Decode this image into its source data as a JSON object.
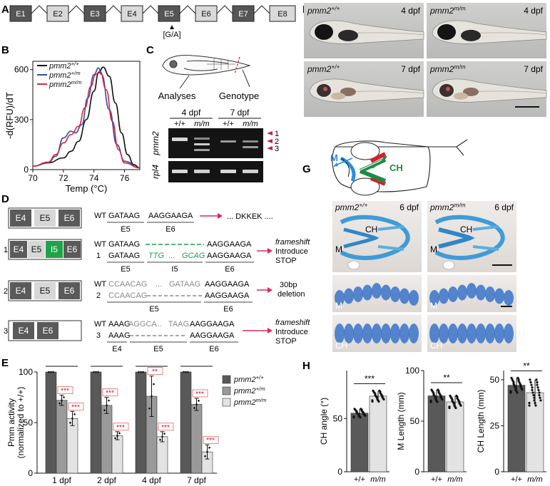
{
  "panels": {
    "A": {
      "letter": "A",
      "exons": [
        "E1",
        "E2",
        "E3",
        "E4",
        "E5",
        "E6",
        "E7",
        "E8"
      ],
      "mutation": "[G/A]"
    },
    "B": {
      "letter": "B"
    },
    "C": {
      "letter": "C",
      "analyses": "Analyses",
      "genotype": "Genotype",
      "groups": [
        "4 dpf",
        "7 dpf"
      ],
      "lanes": [
        "+/+",
        "m/m",
        "+/+",
        "m/m"
      ],
      "gene1": "pmm2",
      "gene2": "rpl4",
      "bands": [
        "1",
        "2",
        "3"
      ]
    },
    "D": {
      "letter": "D",
      "diagram_rows": [
        {
          "boxes": [
            "E4",
            "E5",
            "E6"
          ]
        },
        {
          "num": "1",
          "boxes": [
            "E4",
            "E5",
            "I5",
            "E6"
          ]
        },
        {
          "num": "2",
          "boxes": [
            "E4",
            "E5",
            "E6"
          ]
        },
        {
          "num": "3",
          "boxes": [
            "E4",
            "E6"
          ]
        }
      ],
      "wt_row": {
        "label": "WT",
        "s1": "GATAAG",
        "s2": "AAGGAAGA",
        "result": "... DKKEK ....",
        "e1": "E5",
        "e2": "E6"
      },
      "row1": {
        "wt": "WT",
        "wt_s1": "GATAAG",
        "wt_s2": "AAGGAAGA",
        "mut": "1",
        "m_s1": "GATAAG",
        "m_s2": "TTG",
        "m_dots": "...",
        "m_s3": "GCAG",
        "m_s4": "AAGGAAGA",
        "e1": "E5",
        "e2": "I5",
        "e3": "E6",
        "r1": "frameshift",
        "r2": "Introduce",
        "r3": "STOP"
      },
      "row2": {
        "wt": "WT",
        "wt_s1": "CCAACAG",
        "wt_dots": "...",
        "wt_s2": "GATAAG",
        "wt_s3": "AAGGAAGA",
        "mut": "2",
        "m_s1": "CCAACAG",
        "m_s2": "AAGGAAGA",
        "e1": "E5",
        "e2": "E6",
        "r1": "30bp",
        "r2": "deletion"
      },
      "row3": {
        "wt": "WT",
        "wt_s1": "AAAG",
        "wt_s2": "AGGCA",
        "wt_dots": "...",
        "wt_s3": "TAAG",
        "wt_s4": "AAGGAAGA",
        "mut": "3",
        "m_s1": "AAAG",
        "m_s2": "AAGGAAGA",
        "e1": "E4",
        "e2": "E5",
        "e3": "E6",
        "r1": "frameshift",
        "r2": "Introduce",
        "r3": "STOP"
      }
    },
    "E": {
      "letter": "E"
    },
    "F": {
      "letter": "F",
      "images": [
        {
          "genotype": "pmm2+/+",
          "stage": "4 dpf"
        },
        {
          "genotype": "pmm2m/m",
          "stage": "4 dpf"
        },
        {
          "genotype": "pmm2+/+",
          "stage": "7 dpf"
        },
        {
          "genotype": "pmm2m/m",
          "stage": "7 dpf"
        }
      ]
    },
    "G": {
      "letter": "G",
      "labels": {
        "M": "M",
        "CH": "CH"
      },
      "images": [
        {
          "genotype": "pmm2+/+",
          "stage": "6 dpf",
          "labels": [
            "CH",
            "M"
          ]
        },
        {
          "genotype": "pmm2m/m",
          "stage": "6 dpf",
          "labels": [
            "CH",
            "M"
          ]
        },
        {
          "labels": [
            "M"
          ]
        },
        {
          "labels": [
            "M"
          ]
        },
        {
          "labels": [
            "CH"
          ]
        },
        {
          "labels": [
            "CH"
          ]
        }
      ]
    },
    "H": {
      "letter": "H"
    }
  },
  "chart_data": [
    {
      "id": "B",
      "type": "line",
      "xlabel": "Temp (°C)",
      "ylabel": "-d(RFU)/dT",
      "xlim": [
        70,
        77
      ],
      "ylim": [
        0,
        650
      ],
      "xticks": [
        70,
        72,
        74,
        76
      ],
      "yticks": [
        0,
        300,
        600
      ],
      "legend_position": "top-left",
      "series": [
        {
          "name": "pmm2+/+",
          "color": "#111111",
          "x": [
            70,
            71,
            72,
            72.5,
            73,
            73.5,
            74,
            74.3,
            74.6,
            75,
            75.4,
            75.8,
            76.2,
            76.6,
            77
          ],
          "y": [
            20,
            40,
            70,
            110,
            170,
            300,
            470,
            580,
            615,
            560,
            400,
            220,
            90,
            30,
            10
          ]
        },
        {
          "name": "pmm2+/m",
          "color": "#2f4fa8",
          "x": [
            70,
            71,
            71.5,
            72,
            72.5,
            72.8,
            73.2,
            73.6,
            74,
            74.3,
            74.5,
            75,
            75.5,
            76,
            77
          ],
          "y": [
            20,
            40,
            80,
            190,
            230,
            220,
            270,
            430,
            570,
            610,
            570,
            360,
            150,
            50,
            10
          ]
        },
        {
          "name": "pmm2m/m",
          "color": "#e0263a",
          "x": [
            70,
            71,
            71.5,
            72,
            72.5,
            73,
            73.4,
            73.8,
            74.1,
            74.4,
            74.8,
            75.2,
            75.6,
            76,
            77
          ],
          "y": [
            20,
            45,
            90,
            160,
            210,
            260,
            370,
            500,
            570,
            590,
            480,
            290,
            120,
            40,
            10
          ]
        }
      ]
    },
    {
      "id": "E",
      "type": "bar",
      "ylabel": "Pmm activity (normalized to +/+)",
      "categories": [
        "1 dpf",
        "2 dpf",
        "4 dpf",
        "7 dpf"
      ],
      "ylim": [
        0,
        100
      ],
      "yticks": [
        0,
        50,
        100
      ],
      "legend_position": "right",
      "series": [
        {
          "name": "pmm2+/+",
          "color": "#595959",
          "values": [
            100,
            100,
            100,
            100
          ]
        },
        {
          "name": "pmm2+/m",
          "color": "#9a9a9a",
          "values": [
            72,
            67,
            76,
            68
          ]
        },
        {
          "name": "pmm2m/m",
          "color": "#e3e3e3",
          "values": [
            54,
            37,
            36,
            21
          ]
        }
      ],
      "errors": [
        [
          0,
          0,
          0,
          0
        ],
        [
          5,
          8,
          20,
          6
        ],
        [
          7,
          4,
          5,
          7
        ]
      ],
      "significance": [
        [
          "",
          "",
          "",
          ""
        ],
        [
          "***",
          "***",
          "**",
          "***"
        ],
        [
          "***",
          "***",
          "***",
          "***"
        ]
      ]
    },
    {
      "id": "H1",
      "type": "bar",
      "ylabel": "CH angle (°)",
      "categories": [
        "+/+",
        "m/m"
      ],
      "values": [
        55,
        71
      ],
      "errors": [
        4,
        5
      ],
      "ylim": [
        0,
        95
      ],
      "yticks": [
        0,
        50
      ],
      "significance": "***"
    },
    {
      "id": "H2",
      "type": "bar",
      "ylabel": "M Length (mm)",
      "categories": [
        "+/+",
        "m/m"
      ],
      "values": [
        75,
        69
      ],
      "errors": [
        6,
        6
      ],
      "ylim": [
        0,
        100
      ],
      "yticks": [
        0,
        50,
        100
      ],
      "significance": "**"
    },
    {
      "id": "H3",
      "type": "bar",
      "ylabel": "CH Length (mm)",
      "categories": [
        "+/+",
        "m/m"
      ],
      "values": [
        47,
        43
      ],
      "errors": [
        4,
        7
      ],
      "ylim": [
        0,
        55
      ],
      "yticks": [
        0,
        25,
        50
      ],
      "significance": "**"
    }
  ]
}
